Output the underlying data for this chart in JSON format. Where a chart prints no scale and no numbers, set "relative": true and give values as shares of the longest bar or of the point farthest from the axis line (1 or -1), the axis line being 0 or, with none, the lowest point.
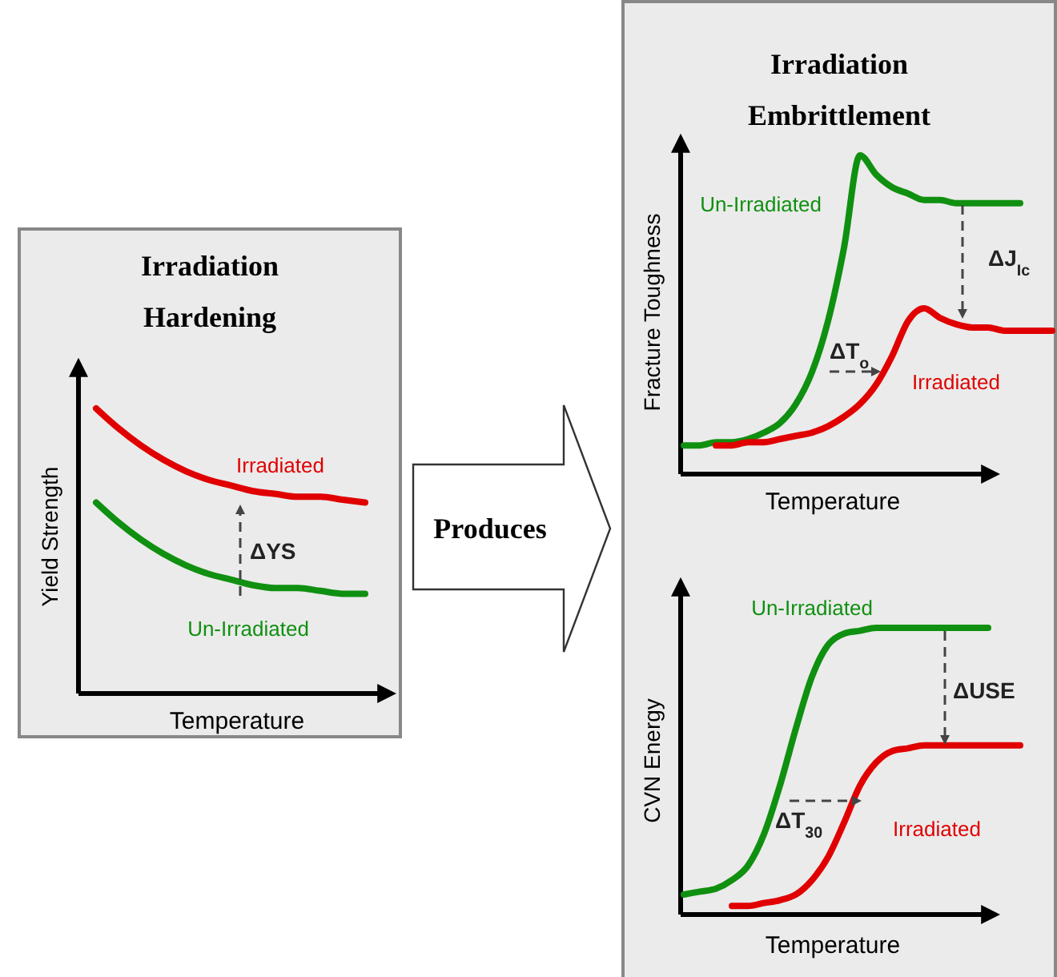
{
  "chart_data": [
    {
      "type": "line",
      "title": "Irradiation Hardening",
      "xlabel": "Temperature",
      "ylabel": "Yield Strength",
      "relative": true,
      "categories": [
        null,
        null,
        null,
        null,
        null,
        null,
        null,
        null,
        null,
        null,
        null,
        null,
        null
      ],
      "series": [
        {
          "name": "Irradiated",
          "color": "#e00000",
          "values": [
            1,
            0.93,
            0.87,
            0.82,
            0.78,
            0.75,
            0.73,
            0.71,
            0.7,
            0.69,
            0.69,
            0.68,
            0.67
          ]
        },
        {
          "name": "Un-Irradiated",
          "color": "#109010",
          "values": [
            0.67,
            0.6,
            0.54,
            0.49,
            0.45,
            0.42,
            0.4,
            0.38,
            0.37,
            0.37,
            0.36,
            0.35,
            0.35
          ]
        }
      ],
      "annotations": [
        "ΔYS"
      ]
    },
    {
      "type": "other",
      "title": "Produces"
    },
    {
      "type": "line",
      "title": "Irradiation Embrittlement",
      "xlabel": "Temperature",
      "ylabel": "Fracture Toughness",
      "relative": true,
      "categories": [
        null,
        null,
        null,
        null,
        null,
        null,
        null,
        null,
        null,
        null,
        null,
        null,
        null,
        null,
        null,
        null,
        null,
        null,
        null,
        null,
        null,
        null,
        null,
        null
      ],
      "series": [
        {
          "name": "Un-Irradiated",
          "color": "#109010",
          "values": [
            0.09,
            0.09,
            0.1,
            0.1,
            0.11,
            0.13,
            0.16,
            0.22,
            0.32,
            0.48,
            0.71,
            1,
            0.94,
            0.9,
            0.88,
            0.86,
            0.86,
            0.85,
            0.85,
            0.85,
            0.85,
            0.85,
            null,
            null
          ]
        },
        {
          "name": "Irradiated",
          "color": "#e00000",
          "values": [
            null,
            null,
            0.09,
            0.09,
            0.1,
            0.1,
            0.11,
            0.12,
            0.13,
            0.15,
            0.18,
            0.22,
            0.28,
            0.37,
            0.48,
            0.52,
            0.49,
            0.47,
            0.46,
            0.46,
            0.45,
            0.45,
            0.45,
            0.45
          ]
        }
      ],
      "annotations": [
        "ΔJ$_{Ic}$",
        "ΔT$_{o}$"
      ]
    },
    {
      "type": "line",
      "xlabel": "Temperature",
      "ylabel": "CVN Energy",
      "relative": true,
      "categories": [
        null,
        null,
        null,
        null,
        null,
        null,
        null,
        null,
        null,
        null,
        null,
        null,
        null,
        null,
        null,
        null,
        null,
        null,
        null,
        null,
        null,
        null
      ],
      "series": [
        {
          "name": "Un-Irradiated",
          "color": "#109010",
          "values": [
            0.07,
            0.08,
            0.09,
            0.12,
            0.17,
            0.28,
            0.45,
            0.65,
            0.83,
            0.94,
            0.98,
            0.99,
            1,
            1,
            1,
            1,
            1,
            1,
            1,
            1,
            null,
            null
          ]
        },
        {
          "name": "Irradiated",
          "color": "#e00000",
          "values": [
            null,
            null,
            null,
            0.03,
            0.03,
            0.04,
            0.05,
            0.07,
            0.12,
            0.2,
            0.32,
            0.45,
            0.53,
            0.57,
            0.58,
            0.59,
            0.59,
            0.59,
            0.59,
            0.59,
            0.59,
            0.59
          ]
        }
      ],
      "annotations": [
        "ΔUSE",
        "ΔT$_{30}$"
      ]
    }
  ]
}
